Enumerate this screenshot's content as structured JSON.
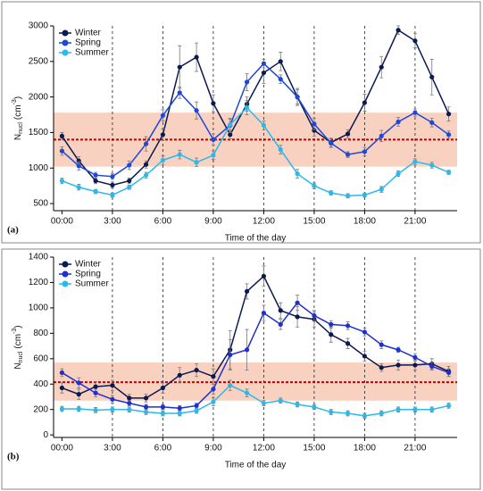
{
  "chart_data": [
    {
      "type": "line",
      "panel_label": "(a)",
      "xlabel": "Time of the day",
      "ylabel": [
        "N",
        "nucl",
        "(cm",
        "-3",
        ")"
      ],
      "x": [
        0,
        1,
        2,
        3,
        4,
        5,
        6,
        7,
        8,
        9,
        10,
        11,
        12,
        13,
        14,
        15,
        16,
        17,
        18,
        19,
        20,
        21,
        22,
        23
      ],
      "xlim": [
        -0.5,
        23.5
      ],
      "xticks": [
        {
          "value": 0,
          "label": "00:00"
        },
        {
          "value": 3,
          "label": "3:00"
        },
        {
          "value": 6,
          "label": "6:00"
        },
        {
          "value": 9,
          "label": "9:00"
        },
        {
          "value": 12,
          "label": "12:00"
        },
        {
          "value": 15,
          "label": "15:00"
        },
        {
          "value": 18,
          "label": "18:00"
        },
        {
          "value": 21,
          "label": "21:00"
        }
      ],
      "ylim": [
        400,
        3000
      ],
      "yticks": [
        500,
        1000,
        1500,
        2000,
        2500,
        3000
      ],
      "band": [
        1020,
        1780
      ],
      "ref_line": 1400,
      "legend": "upper-left",
      "series": [
        {
          "name": "Winter",
          "color": "#0b1a52",
          "values": [
            1450,
            1100,
            820,
            760,
            820,
            1050,
            1470,
            2420,
            2560,
            1910,
            1470,
            1900,
            2340,
            2500,
            2000,
            1530,
            1360,
            1480,
            1920,
            2420,
            2940,
            2790,
            2280,
            1760
          ],
          "errors": [
            50,
            60,
            40,
            40,
            40,
            50,
            80,
            300,
            200,
            120,
            60,
            100,
            150,
            130,
            100,
            80,
            60,
            60,
            120,
            150,
            60,
            100,
            250,
            100
          ]
        },
        {
          "name": "Spring",
          "color": "#1f47d8",
          "values": [
            1240,
            1030,
            900,
            880,
            1040,
            1340,
            1740,
            2060,
            1810,
            1400,
            1600,
            2210,
            2470,
            2250,
            2000,
            1620,
            1350,
            1190,
            1230,
            1450,
            1650,
            1780,
            1640,
            1470
          ],
          "errors": [
            60,
            60,
            40,
            40,
            60,
            100,
            80,
            80,
            120,
            80,
            100,
            120,
            60,
            60,
            120,
            80,
            60,
            40,
            60,
            80,
            60,
            50,
            60,
            50
          ]
        },
        {
          "name": "Summer",
          "color": "#2bb8ea",
          "values": [
            820,
            730,
            670,
            620,
            730,
            900,
            1110,
            1190,
            1080,
            1180,
            1610,
            1850,
            1600,
            1260,
            920,
            750,
            650,
            610,
            620,
            700,
            920,
            1090,
            1040,
            940
          ],
          "errors": [
            40,
            40,
            30,
            30,
            30,
            40,
            60,
            60,
            60,
            60,
            80,
            100,
            60,
            60,
            60,
            40,
            30,
            30,
            30,
            40,
            40,
            40,
            40,
            30
          ]
        }
      ]
    },
    {
      "type": "line",
      "panel_label": "(b)",
      "xlabel": "Time of the day",
      "ylabel": [
        "N",
        "nucl",
        "(cm",
        "-3",
        ")"
      ],
      "x": [
        0,
        1,
        2,
        3,
        4,
        5,
        6,
        7,
        8,
        9,
        10,
        11,
        12,
        13,
        14,
        15,
        16,
        17,
        18,
        19,
        20,
        21,
        22,
        23
      ],
      "xlim": [
        -0.5,
        23.5
      ],
      "xticks": [
        {
          "value": 0,
          "label": "00:00"
        },
        {
          "value": 3,
          "label": "3:00"
        },
        {
          "value": 6,
          "label": "6:00"
        },
        {
          "value": 9,
          "label": "9:00"
        },
        {
          "value": 12,
          "label": "12:00"
        },
        {
          "value": 15,
          "label": "15:00"
        },
        {
          "value": 18,
          "label": "18:00"
        },
        {
          "value": 21,
          "label": "21:00"
        }
      ],
      "ylim": [
        -20,
        1400
      ],
      "yticks": [
        0,
        200,
        400,
        600,
        800,
        1000,
        1200,
        1400
      ],
      "band": [
        270,
        570
      ],
      "ref_line": 415,
      "legend": "upper-left",
      "series": [
        {
          "name": "Winter",
          "color": "#0b1a52",
          "values": [
            370,
            320,
            380,
            390,
            290,
            290,
            370,
            470,
            510,
            460,
            670,
            1130,
            1250,
            980,
            930,
            910,
            790,
            720,
            620,
            530,
            550,
            550,
            560,
            500
          ],
          "errors": [
            40,
            40,
            40,
            40,
            30,
            30,
            40,
            60,
            50,
            60,
            150,
            60,
            80,
            60,
            80,
            60,
            60,
            40,
            40,
            30,
            40,
            40,
            40,
            40
          ]
        },
        {
          "name": "Spring",
          "color": "#1f2fd0",
          "values": [
            490,
            410,
            330,
            280,
            250,
            220,
            220,
            210,
            230,
            360,
            630,
            670,
            960,
            870,
            1040,
            940,
            870,
            860,
            810,
            710,
            670,
            610,
            540,
            490
          ],
          "errors": [
            30,
            40,
            30,
            30,
            20,
            20,
            20,
            20,
            20,
            40,
            120,
            160,
            60,
            40,
            60,
            40,
            30,
            30,
            30,
            30,
            20,
            30,
            30,
            30
          ]
        },
        {
          "name": "Summer",
          "color": "#2bb8ea",
          "values": [
            205,
            205,
            195,
            200,
            200,
            180,
            170,
            170,
            190,
            260,
            390,
            330,
            250,
            270,
            240,
            220,
            180,
            170,
            150,
            170,
            200,
            200,
            200,
            230
          ],
          "errors": [
            20,
            20,
            20,
            20,
            20,
            20,
            20,
            20,
            20,
            30,
            40,
            30,
            20,
            20,
            20,
            20,
            20,
            20,
            20,
            20,
            20,
            20,
            20,
            20
          ]
        }
      ]
    }
  ]
}
